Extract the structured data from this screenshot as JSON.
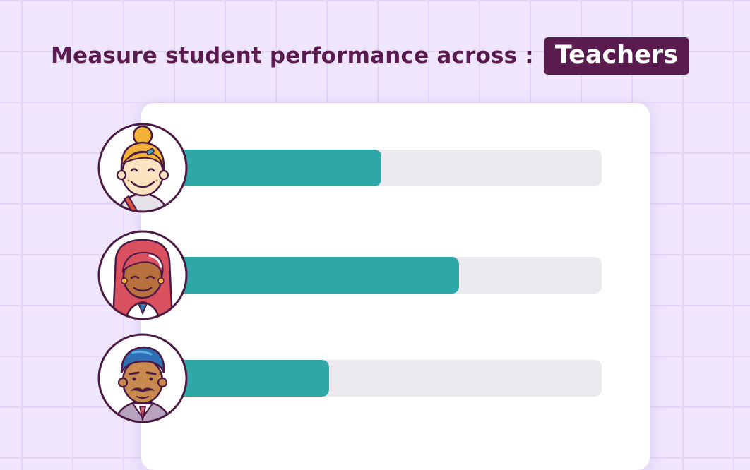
{
  "header": {
    "text": "Measure student performance across :",
    "highlight": "Teachers"
  },
  "chart_data": {
    "type": "bar",
    "orientation": "horizontal",
    "max": 100,
    "series": [
      {
        "avatar": "teacher-blonde-bun-icon",
        "value": 49
      },
      {
        "avatar": "teacher-red-hair-icon",
        "value": 67
      },
      {
        "avatar": "teacher-mustache-icon",
        "value": 37
      }
    ]
  },
  "colors": {
    "accent": "#5a1b4f",
    "bar_fill": "#2ea8a6",
    "bar_track": "#ebe8ee",
    "background": "#efe6fd"
  }
}
